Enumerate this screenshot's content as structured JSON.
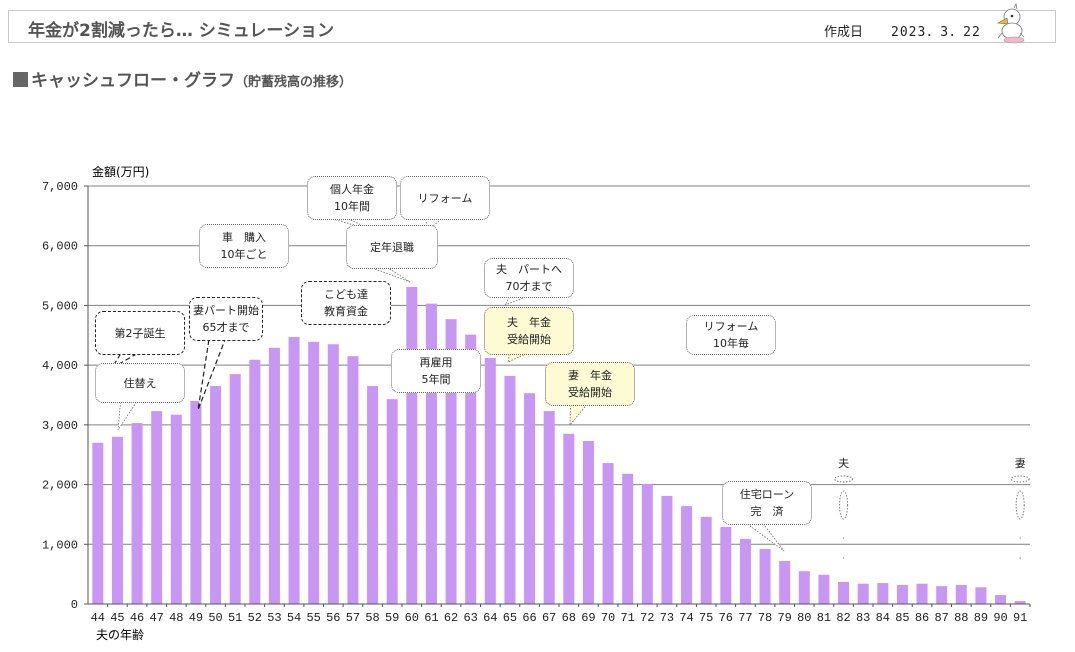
{
  "header": {
    "title": "年金が2割減ったら… シミュレーション",
    "date_label": "作成日",
    "date_value": "2023．3．22",
    "mascot_icon": "duck-mascot-icon"
  },
  "section": {
    "title": "キャッシュフロー・グラフ",
    "subtitle": "（貯蓄残高の推移）"
  },
  "colors": {
    "bar": "#c797f3",
    "grid": "#808080",
    "callout_yellow": "#fdfbd3"
  },
  "chart_data": {
    "type": "bar",
    "title": "キャッシュフロー・グラフ（貯蓄残高の推移）",
    "ylabel": "金額(万円)",
    "xlabel": "夫の年齢",
    "ylim": [
      0,
      7000
    ],
    "yticks": [
      0,
      1000,
      2000,
      3000,
      4000,
      5000,
      6000,
      7000
    ],
    "ytick_labels": [
      "0",
      "1,000",
      "2,000",
      "3,000",
      "4,000",
      "5,000",
      "6,000",
      "7,000"
    ],
    "grid": true,
    "categories": [
      "44",
      "45",
      "46",
      "47",
      "48",
      "49",
      "50",
      "51",
      "52",
      "53",
      "54",
      "55",
      "56",
      "57",
      "58",
      "59",
      "60",
      "61",
      "62",
      "63",
      "64",
      "65",
      "66",
      "67",
      "68",
      "69",
      "70",
      "71",
      "72",
      "73",
      "74",
      "75",
      "76",
      "77",
      "78",
      "79",
      "80",
      "81",
      "82",
      "83",
      "84",
      "85",
      "86",
      "87",
      "88",
      "89",
      "90",
      "91"
    ],
    "values": [
      2700,
      2800,
      3030,
      3230,
      3170,
      3400,
      3650,
      3850,
      4090,
      4290,
      4470,
      4390,
      4350,
      4150,
      3650,
      3430,
      5310,
      5030,
      4770,
      4510,
      4120,
      3820,
      3530,
      3230,
      2850,
      2730,
      2360,
      2180,
      2010,
      1810,
      1640,
      1460,
      1290,
      1090,
      920,
      720,
      550,
      490,
      370,
      340,
      350,
      320,
      340,
      300,
      320,
      280,
      150,
      50
    ],
    "annotations": [
      {
        "age": "45",
        "lines": [
          "住替え"
        ],
        "style": "dotted"
      },
      {
        "age": "45",
        "lines": [
          "第2子誕生"
        ],
        "style": "dashed"
      },
      {
        "age": "49",
        "lines": [
          "妻パート開始",
          "65才まで"
        ],
        "style": "dashed"
      },
      {
        "age": "50",
        "lines": [
          "車　購入",
          "10年ごと"
        ],
        "style": "dotted"
      },
      {
        "age": "54",
        "lines": [
          "こども達",
          "教育資金"
        ],
        "style": "dashed"
      },
      {
        "age": "58",
        "lines": [
          "個人年金",
          "10年間"
        ],
        "style": "dotted"
      },
      {
        "age": "60",
        "lines": [
          "リフォーム"
        ],
        "style": "dotted"
      },
      {
        "age": "60",
        "lines": [
          "定年退職"
        ],
        "style": "dotted"
      },
      {
        "age": "60",
        "lines": [
          "再雇用",
          "5年間"
        ],
        "style": "dotted"
      },
      {
        "age": "65",
        "lines": [
          "夫　パートへ",
          "70才まで"
        ],
        "style": "dotted"
      },
      {
        "age": "65",
        "lines": [
          "夫　年金",
          "受給開始"
        ],
        "style": "dotted-yellow"
      },
      {
        "age": "68",
        "lines": [
          "妻　年金",
          "受給開始"
        ],
        "style": "dotted-yellow"
      },
      {
        "age": "70",
        "lines": [
          "リフォーム",
          "10年毎"
        ],
        "style": "dotted"
      },
      {
        "age": "79",
        "lines": [
          "住宅ローン",
          "完　済"
        ],
        "style": "dotted"
      },
      {
        "age": "82",
        "lines": [
          "夫"
        ],
        "style": "angel-figure"
      },
      {
        "age": "91",
        "lines": [
          "妻"
        ],
        "style": "angel-figure"
      }
    ]
  }
}
